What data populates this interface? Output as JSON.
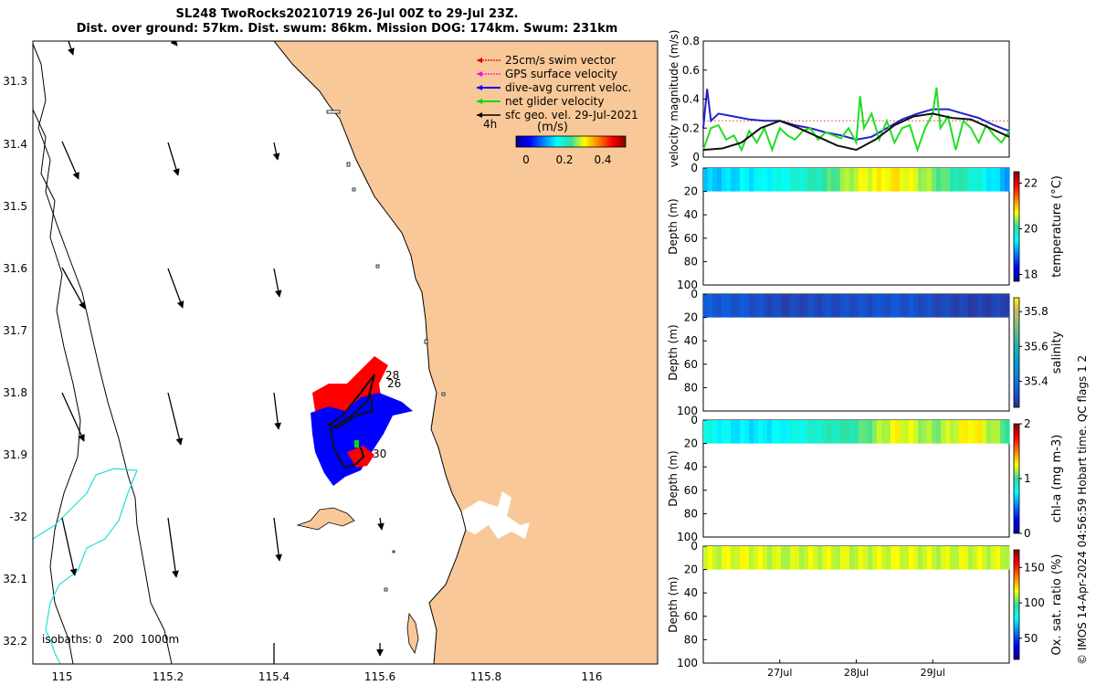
{
  "title": {
    "line1": "SL248 TwoRocks20210719 26-Jul 00Z to 29-Jul 23Z.",
    "line2": "Dist. over ground: 57km. Dist. swum: 86km. Mission DOG: 174km. Swum: 231km"
  },
  "map": {
    "lon_ticks": [
      "115",
      "115.2",
      "115.4",
      "115.6",
      "115.8",
      "116"
    ],
    "lat_ticks": [
      "31.3",
      "31.4",
      "31.5",
      "31.6",
      "31.7",
      "31.8",
      "31.9",
      "-32",
      "32.1",
      "32.2"
    ],
    "legend": [
      {
        "label": "25cm/s swim vector",
        "color": "#e00000"
      },
      {
        "label": "GPS surface velocity",
        "color": "#ff00ff"
      },
      {
        "label": "dive-avg current veloc.",
        "color": "#0000ff"
      },
      {
        "label": "net glider velocity",
        "color": "#00dd00"
      },
      {
        "label": "sfc geo. vel. 29-Jul-2021",
        "color": "#000000"
      }
    ],
    "interval_label": "4h",
    "colorbar_units": "(m/s)",
    "colorbar_ticks": [
      "0",
      "0.2",
      "0.4"
    ],
    "day_labels": [
      "28",
      "26",
      "30"
    ],
    "isobaths_label": "isobaths: 0   200  1000m",
    "land_color": "#f9c898",
    "isobath_color": "#22dddd"
  },
  "chart_data": [
    {
      "type": "line",
      "title": "",
      "ylabel": "velocity magnitude (m/s)",
      "ylim": [
        0,
        0.8
      ],
      "yticks": [
        "0",
        "0.2",
        "0.4",
        "0.6",
        "0.8"
      ],
      "x_range_days": [
        26,
        30
      ],
      "series": [
        {
          "name": "swim speed",
          "color": "#ff7070",
          "style": "dotted",
          "x": [
            26.0,
            30.0
          ],
          "y": [
            0.25,
            0.25
          ]
        },
        {
          "name": "dive-avg current",
          "color": "#2222cc",
          "x": [
            26.0,
            26.05,
            26.1,
            26.2,
            26.4,
            26.6,
            26.8,
            27.0,
            27.2,
            27.4,
            27.6,
            27.8,
            28.0,
            28.2,
            28.4,
            28.6,
            28.8,
            29.0,
            29.2,
            29.4,
            29.6,
            29.8,
            30.0
          ],
          "y": [
            0.2,
            0.47,
            0.25,
            0.3,
            0.28,
            0.26,
            0.25,
            0.25,
            0.22,
            0.2,
            0.17,
            0.15,
            0.12,
            0.14,
            0.2,
            0.26,
            0.3,
            0.33,
            0.33,
            0.3,
            0.27,
            0.22,
            0.18
          ]
        },
        {
          "name": "net glider velocity",
          "color": "#22dd22",
          "x": [
            26.0,
            26.1,
            26.2,
            26.3,
            26.4,
            26.5,
            26.6,
            26.7,
            26.8,
            26.9,
            27.0,
            27.1,
            27.2,
            27.3,
            27.4,
            27.5,
            27.6,
            27.7,
            27.8,
            27.9,
            28.0,
            28.05,
            28.1,
            28.2,
            28.3,
            28.4,
            28.5,
            28.6,
            28.7,
            28.8,
            28.9,
            29.0,
            29.05,
            29.1,
            29.2,
            29.3,
            29.4,
            29.5,
            29.6,
            29.7,
            29.8,
            29.9,
            30.0
          ],
          "y": [
            0.05,
            0.2,
            0.22,
            0.12,
            0.15,
            0.05,
            0.18,
            0.1,
            0.2,
            0.05,
            0.2,
            0.15,
            0.12,
            0.18,
            0.2,
            0.12,
            0.17,
            0.15,
            0.13,
            0.2,
            0.1,
            0.42,
            0.2,
            0.3,
            0.12,
            0.25,
            0.1,
            0.2,
            0.22,
            0.05,
            0.2,
            0.3,
            0.48,
            0.2,
            0.28,
            0.05,
            0.25,
            0.2,
            0.1,
            0.22,
            0.15,
            0.1,
            0.18
          ]
        },
        {
          "name": "sfc geo. vel.",
          "color": "#111111",
          "x": [
            26.0,
            26.25,
            26.5,
            26.75,
            27.0,
            27.25,
            27.5,
            27.75,
            28.0,
            28.25,
            28.5,
            28.75,
            29.0,
            29.25,
            29.5,
            29.75,
            30.0
          ],
          "y": [
            0.05,
            0.06,
            0.1,
            0.2,
            0.25,
            0.2,
            0.14,
            0.08,
            0.05,
            0.12,
            0.22,
            0.28,
            0.3,
            0.27,
            0.26,
            0.2,
            0.14
          ]
        }
      ]
    },
    {
      "type": "heatmap",
      "ylabel": "Depth (m)",
      "yticks": [
        "0",
        "20",
        "40",
        "60",
        "80",
        "100"
      ],
      "colorbar_label": "temperature (°C)",
      "colorbar_ticks": [
        "18",
        "20",
        "22"
      ],
      "crange": [
        17.7,
        22.5
      ],
      "band_depth": [
        0,
        20
      ],
      "values_by_day": [
        [
          26.0,
          19.2
        ],
        [
          26.5,
          19.4
        ],
        [
          27.0,
          19.6
        ],
        [
          27.5,
          20.0
        ],
        [
          28.0,
          20.6
        ],
        [
          28.5,
          20.8
        ],
        [
          29.0,
          20.3
        ],
        [
          29.5,
          19.8
        ],
        [
          30.0,
          19.0
        ]
      ]
    },
    {
      "type": "heatmap",
      "ylabel": "Depth (m)",
      "yticks": [
        "0",
        "20",
        "40",
        "60",
        "80",
        "100"
      ],
      "colorbar_label": "salinity",
      "colorbar_ticks": [
        "35.4",
        "35.6",
        "35.8"
      ],
      "crange": [
        35.25,
        35.88
      ],
      "band_depth": [
        0,
        20
      ],
      "values_by_day": [
        [
          26.0,
          35.34
        ],
        [
          26.5,
          35.33
        ],
        [
          27.0,
          35.3
        ],
        [
          27.5,
          35.31
        ],
        [
          28.0,
          35.32
        ],
        [
          28.5,
          35.33
        ],
        [
          29.0,
          35.31
        ],
        [
          29.5,
          35.29
        ],
        [
          30.0,
          35.3
        ]
      ]
    },
    {
      "type": "heatmap",
      "ylabel": "Depth (m)",
      "yticks": [
        "0",
        "20",
        "40",
        "60",
        "80",
        "100"
      ],
      "colorbar_label": "chl-a (mg m-3)",
      "colorbar_ticks": [
        "0",
        "1",
        "2"
      ],
      "crange": [
        0,
        2
      ],
      "band_depth": [
        0,
        20
      ],
      "values_by_day": [
        [
          26.0,
          0.8
        ],
        [
          26.5,
          0.7
        ],
        [
          27.0,
          0.75
        ],
        [
          27.5,
          0.9
        ],
        [
          28.0,
          1.0
        ],
        [
          28.5,
          1.25
        ],
        [
          29.0,
          1.1
        ],
        [
          29.5,
          1.3
        ],
        [
          30.0,
          1.0
        ]
      ]
    },
    {
      "type": "heatmap",
      "ylabel": "Depth (m)",
      "yticks": [
        "0",
        "20",
        "40",
        "60",
        "80",
        "100"
      ],
      "xticks": [
        "27Jul",
        "28Jul",
        "29Jul"
      ],
      "colorbar_label": "Ox. sat. ratio (%)",
      "colorbar_ticks": [
        "50",
        "100",
        "150"
      ],
      "crange": [
        20,
        175
      ],
      "band_depth": [
        0,
        20
      ],
      "values_by_day": [
        [
          26.0,
          112
        ],
        [
          26.5,
          115
        ],
        [
          27.0,
          111
        ],
        [
          27.5,
          113
        ],
        [
          28.0,
          112
        ],
        [
          28.5,
          114
        ],
        [
          29.0,
          112
        ],
        [
          29.5,
          113
        ],
        [
          30.0,
          112
        ]
      ]
    }
  ],
  "side_text": "© IMOS 14-Apr-2024 04:56:59 Hobart time. QC flags 1  2"
}
